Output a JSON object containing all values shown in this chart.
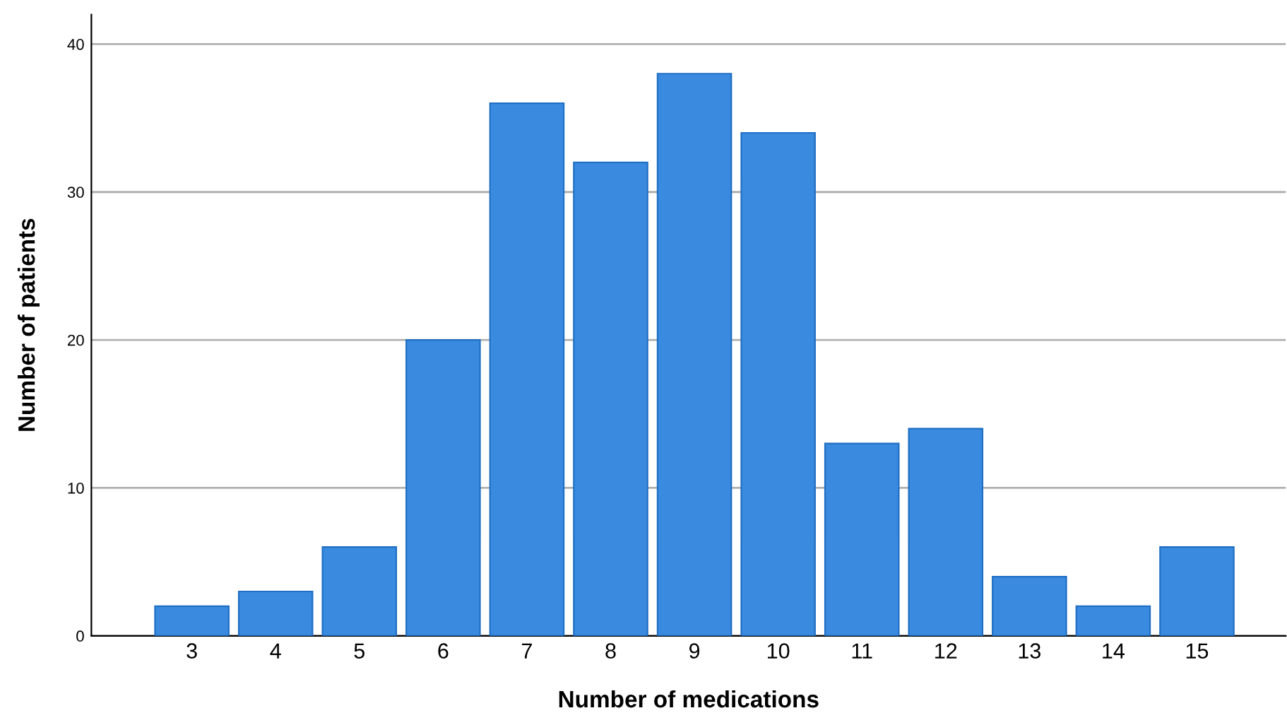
{
  "chart_data": {
    "type": "bar",
    "xlabel": "Number of medications",
    "ylabel": "Number of patients",
    "categories": [
      "3",
      "4",
      "5",
      "6",
      "7",
      "8",
      "9",
      "10",
      "11",
      "12",
      "13",
      "14",
      "15"
    ],
    "values": [
      2,
      3,
      6,
      20,
      36,
      32,
      38,
      34,
      13,
      14,
      4,
      2,
      6
    ],
    "color": "#3a8be0",
    "ylim": [
      0,
      42
    ],
    "yticks": [
      0,
      10,
      20,
      30,
      40
    ],
    "grid": "y"
  }
}
